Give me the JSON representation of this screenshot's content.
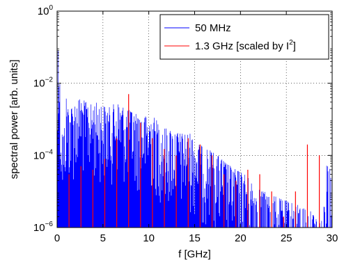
{
  "chart_data": {
    "type": "line",
    "xlabel": "f [GHz]",
    "ylabel": "spectral power [arb. units]",
    "xlim": [
      0,
      30
    ],
    "ylim": [
      1e-06,
      1
    ],
    "yscale": "log",
    "grid": true,
    "legend_position": "top-right",
    "x_ticks": [
      0,
      5,
      10,
      15,
      20,
      25,
      30
    ],
    "y_ticks": [
      {
        "value": 1e-06,
        "base": "10",
        "exp": "−6"
      },
      {
        "value": 0.0001,
        "base": "10",
        "exp": "−4"
      },
      {
        "value": 0.01,
        "base": "10",
        "exp": "−2"
      },
      {
        "value": 1,
        "base": "10",
        "exp": "0"
      }
    ],
    "legend": {
      "entry1": "50 MHz",
      "entry2_main": "1.3 GHz [scaled by I",
      "entry2_sup": "2",
      "entry2_end": "]"
    },
    "series": [
      {
        "name": "50 MHz",
        "color": "#0000ff",
        "style": "dense-spectrum",
        "envelope": {
          "x": [
            0.0,
            0.1,
            0.4,
            0.7,
            1.0,
            1.4,
            2.0,
            2.6,
            3.5,
            4.5,
            5.5,
            6.5,
            7.5,
            8.5,
            9.5,
            10.5,
            11.5,
            12.5,
            13.5,
            14.5,
            15.5,
            16.5,
            17.5,
            18.5,
            19.5,
            20.5,
            21.5,
            22.5,
            23.5,
            24.5,
            25.5,
            26.5,
            27.5,
            28.5,
            29.0,
            29.5,
            30.0
          ],
          "y": [
            1e-06,
            0.6,
            0.0015,
            0.0003,
            0.004,
            0.002,
            0.003,
            0.004,
            0.0025,
            0.003,
            0.002,
            0.003,
            0.002,
            0.0015,
            0.0012,
            0.0012,
            0.0006,
            0.0005,
            0.0004,
            0.0004,
            0.0002,
            0.00015,
            0.0001,
            6e-05,
            4e-05,
            3e-05,
            1.5e-05,
            1e-05,
            8e-06,
            6e-06,
            5e-06,
            4e-06,
            3e-06,
            2e-06,
            1.5e-06,
            0.00015,
            1.2e-05
          ]
        },
        "floor": 1e-06,
        "spacing": 0.05
      },
      {
        "name": "1.3 GHz [scaled by I²]",
        "color": "#ff0000",
        "style": "stems",
        "x": [
          1.3,
          2.6,
          3.9,
          5.2,
          6.5,
          7.8,
          9.1,
          10.4,
          11.7,
          13.0,
          14.3,
          15.6,
          16.9,
          18.2,
          19.5,
          20.8,
          22.1,
          23.4,
          24.7,
          26.0,
          27.3,
          28.6
        ],
        "y": [
          3e-05,
          5e-05,
          4e-05,
          8e-05,
          0.0003,
          0.005,
          0.0008,
          0.0003,
          0.00015,
          0.0001,
          0.0003,
          0.0002,
          0.0001,
          3e-05,
          2e-05,
          4e-05,
          3e-05,
          1e-05,
          2e-06,
          1e-05,
          0.0002,
          0.0001
        ]
      }
    ]
  }
}
